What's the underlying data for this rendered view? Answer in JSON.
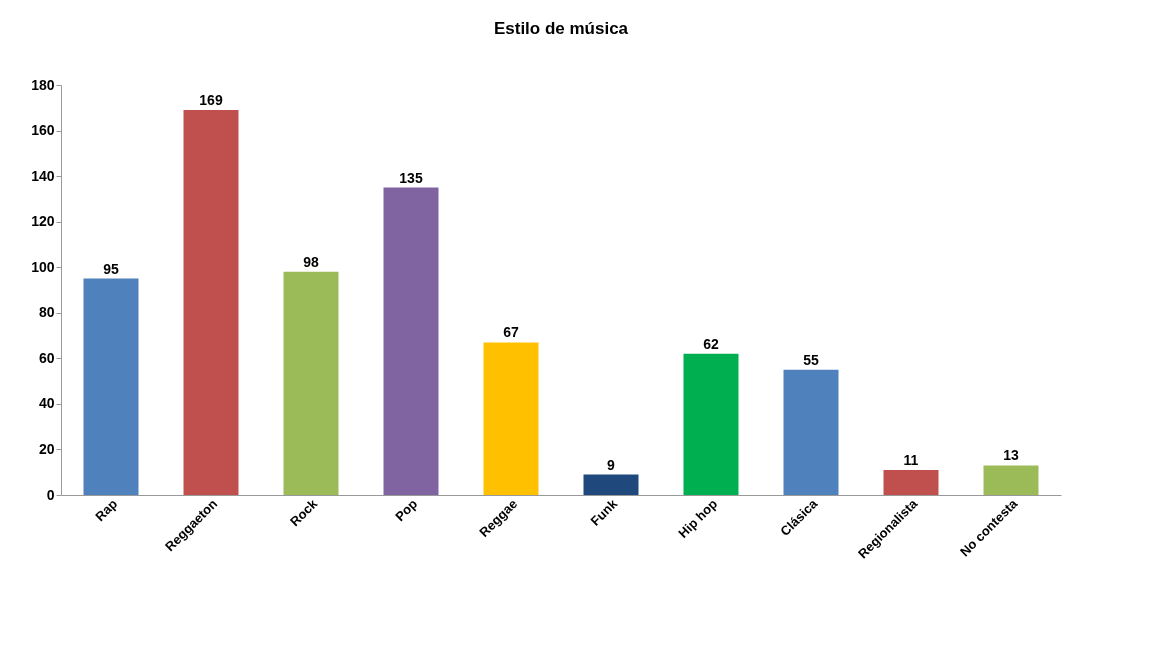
{
  "chart_data": {
    "type": "bar",
    "title": "Estilo de música",
    "categories": [
      "Rap",
      "Reggaeton",
      "Rock",
      "Pop",
      "Reggae",
      "Funk",
      "Hip hop",
      "Clásica",
      "Regionalista",
      "No contesta"
    ],
    "values": [
      95,
      169,
      98,
      135,
      67,
      9,
      62,
      55,
      11,
      13
    ],
    "colors": [
      "#4f81bd",
      "#c0504d",
      "#9bbb59",
      "#8064a2",
      "#ffc000",
      "#1f497d",
      "#00b050",
      "#4f81bd",
      "#c0504d",
      "#9bbb59"
    ],
    "ylim": [
      0,
      180
    ],
    "yticks": [
      0,
      20,
      40,
      60,
      80,
      100,
      120,
      140,
      160,
      180
    ],
    "grid": false,
    "data_labels": true
  }
}
